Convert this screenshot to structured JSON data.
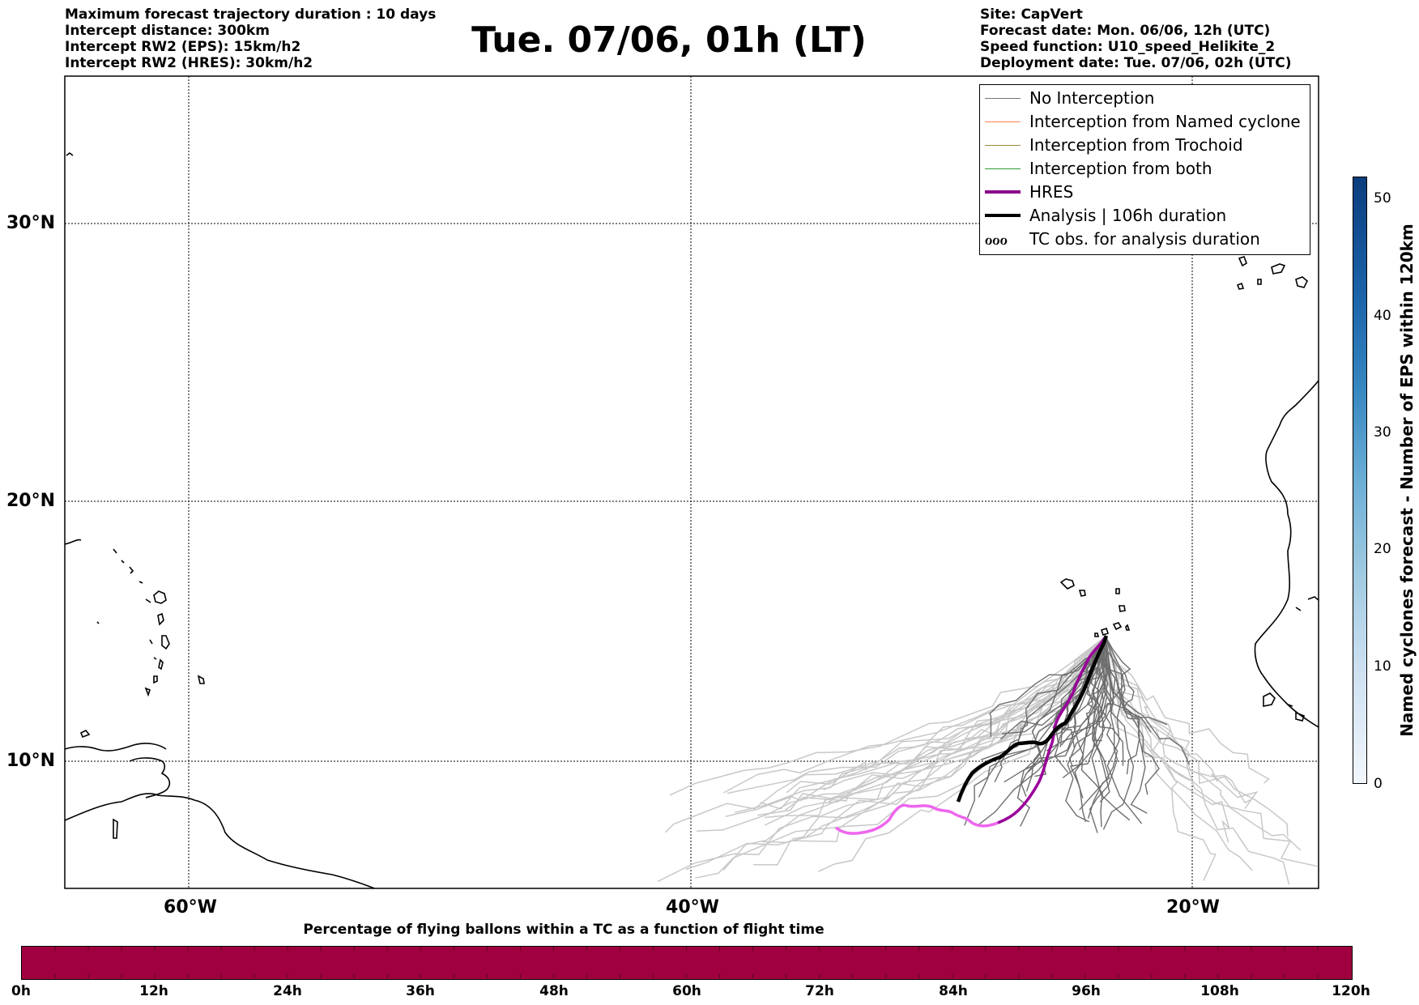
{
  "header": {
    "left_lines": [
      "Maximum forecast trajectory duration : 10 days",
      "Intercept distance: 300km",
      "Intercept RW2 (EPS):  15km/h2",
      "Intercept RW2 (HRES): 30km/h2"
    ],
    "title": "Tue. 07/06, 01h (LT)",
    "right_lines": [
      "Site: CapVert",
      "Forecast date: Mon. 06/06, 12h (UTC)",
      "Speed function: U10_speed_Helikite_2",
      "Deployment date: Tue. 07/06, 02h (UTC)"
    ]
  },
  "map": {
    "lat_labels": [
      "30°N",
      "20°N",
      "10°N"
    ],
    "lon_labels": [
      "60°W",
      "40°W",
      "20°W"
    ]
  },
  "legend": {
    "items": [
      {
        "label": "No Interception",
        "color": "#777777"
      },
      {
        "label": "Interception from Named cyclone",
        "color": "#ff7f50"
      },
      {
        "label": "Interception from Trochoid",
        "color": "#9a8a3a"
      },
      {
        "label": "Interception from both",
        "color": "#2e9a2e"
      },
      {
        "label": "HRES",
        "color": "#8b008b"
      },
      {
        "label": "Analysis | 106h duration",
        "color": "#000000"
      },
      {
        "label": "TC obs. for analysis duration",
        "color": "#000000",
        "symbol": "ℴℴℴ"
      }
    ]
  },
  "colorbar_right": {
    "label": "Named cyclones forecast - Number of EPS within 120km",
    "ticks": [
      "0",
      "10",
      "20",
      "30",
      "40",
      "50"
    ]
  },
  "colorbar_bottom": {
    "title": "Percentage of flying ballons within a TC as a function of flight time",
    "ticks": [
      "0h",
      "12h",
      "24h",
      "36h",
      "48h",
      "60h",
      "72h",
      "84h",
      "96h",
      "108h",
      "120h"
    ],
    "color": "#a0003f"
  }
}
